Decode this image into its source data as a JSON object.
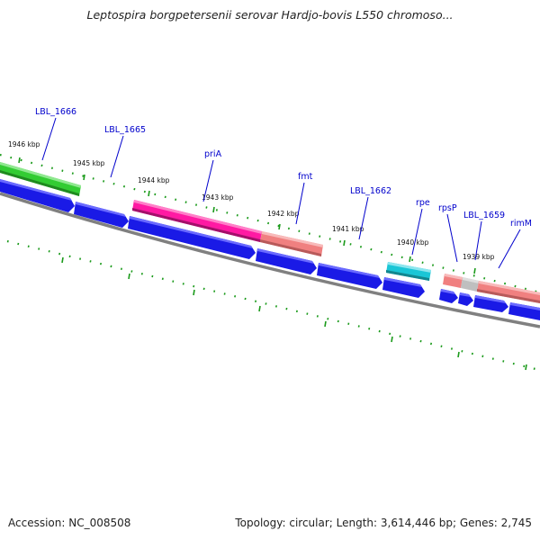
{
  "title": "Leptospira borgpetersenii serovar Hardjo-bovis L550 chromoso...",
  "footer": {
    "accession": "Accession: NC_008508",
    "summary": "Topology: circular; Length: 3,614,446 bp; Genes: 2,745"
  },
  "colors": {
    "backbone": "#808080",
    "cds_arrow": "#1a1ae6",
    "cds_arrow_light": "#5a5aff",
    "tick": "#1a9a1a",
    "label": "#0000cc",
    "green_feature": "#33cc33",
    "magenta_feature": "#ff1aa3",
    "salmon_feature": "#f08080",
    "cyan_feature": "#1ac6d6",
    "grey_feature": "#bfbfbf"
  },
  "ticks": [
    {
      "label": "1946 kbp"
    },
    {
      "label": "1945 kbp"
    },
    {
      "label": "1944 kbp"
    },
    {
      "label": "1943 kbp"
    },
    {
      "label": "1942 kbp"
    },
    {
      "label": "1941 kbp"
    },
    {
      "label": "1940 kbp"
    },
    {
      "label": "1939 kbp"
    }
  ],
  "gene_labels": [
    {
      "name": "LBL_1666"
    },
    {
      "name": "LBL_1665"
    },
    {
      "name": "priA"
    },
    {
      "name": "fmt"
    },
    {
      "name": "LBL_1662"
    },
    {
      "name": "rpe"
    },
    {
      "name": "rpsP"
    },
    {
      "name": "LBL_1659"
    },
    {
      "name": "rimM"
    }
  ]
}
